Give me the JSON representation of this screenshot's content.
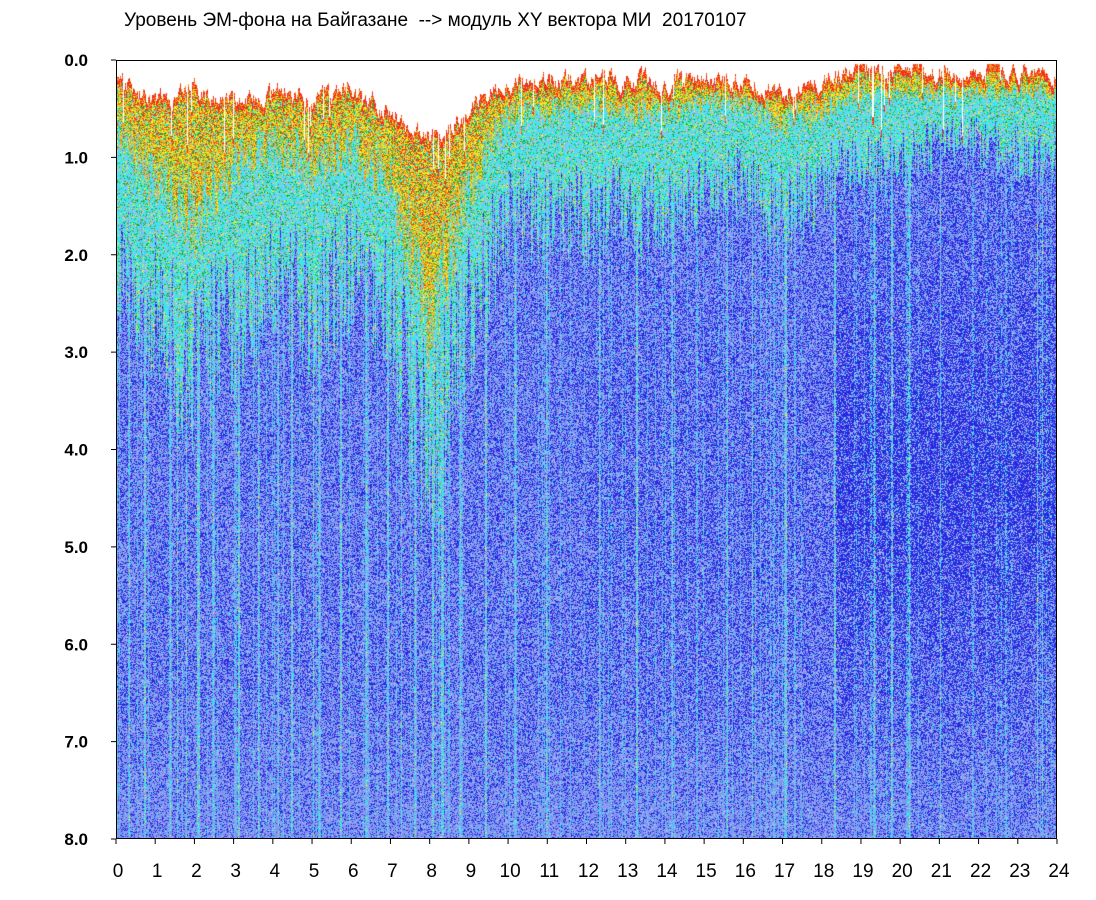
{
  "chart_data": {
    "type": "heatmap",
    "title": "Уровень ЭМ-фона на Байгазане  --> модуль XY вектора МИ  20170107",
    "xlabel": "",
    "ylabel": "",
    "xlim": [
      0,
      24
    ],
    "ylim": [
      0.0,
      8.0
    ],
    "y_inverted": true,
    "x_tick_labels": [
      "0",
      "1",
      "2",
      "3",
      "4",
      "5",
      "6",
      "7",
      "8",
      "9",
      "10",
      "11",
      "12",
      "13",
      "14",
      "15",
      "16",
      "17",
      "18",
      "19",
      "20",
      "21",
      "22",
      "23",
      "24"
    ],
    "y_tick_labels": [
      "0.0",
      "1.0",
      "2.0",
      "3.0",
      "4.0",
      "5.0",
      "6.0",
      "7.0",
      "8.0"
    ],
    "grid": false,
    "legend": "none",
    "colorscale": [
      "#2828e0",
      "#7f93ee",
      "#aab8f2",
      "#38e8ec",
      "#26a426",
      "#f0f028",
      "#f0a020",
      "#f03020"
    ],
    "hourly_envelope_top": [
      0.2,
      0.4,
      0.3,
      0.4,
      0.3,
      0.4,
      0.3,
      0.5,
      0.8,
      0.5,
      0.2,
      0.2,
      0.2,
      0.2,
      0.2,
      0.15,
      0.2,
      0.3,
      0.2,
      0.1,
      0.1,
      0.1,
      0.1,
      0.1
    ],
    "hourly_warm_extent": [
      0.7,
      1.2,
      1.5,
      1.0,
      0.8,
      1.0,
      0.8,
      1.2,
      2.5,
      1.2,
      0.5,
      0.5,
      0.4,
      0.5,
      0.5,
      0.4,
      0.4,
      0.6,
      0.5,
      0.3,
      0.3,
      0.3,
      0.3,
      0.3
    ],
    "hourly_cyan_extent": [
      2.0,
      2.5,
      3.0,
      2.5,
      2.0,
      2.5,
      2.0,
      2.5,
      4.0,
      2.5,
      1.5,
      1.5,
      1.5,
      1.5,
      1.5,
      1.2,
      1.2,
      1.5,
      1.2,
      1.0,
      1.0,
      0.8,
      0.8,
      0.9
    ],
    "bright_streak_hours": [
      0.3,
      0.7,
      1.35,
      2.05,
      2.45,
      3.1,
      3.6,
      4.1,
      4.45,
      5.15,
      5.7,
      6.35,
      6.9,
      7.6,
      8.05,
      8.3,
      8.75,
      9.4,
      10.15,
      10.95,
      12.3,
      13.25,
      14.15,
      15.55,
      17.05,
      18.3,
      19.3,
      19.75,
      20.2
    ]
  }
}
